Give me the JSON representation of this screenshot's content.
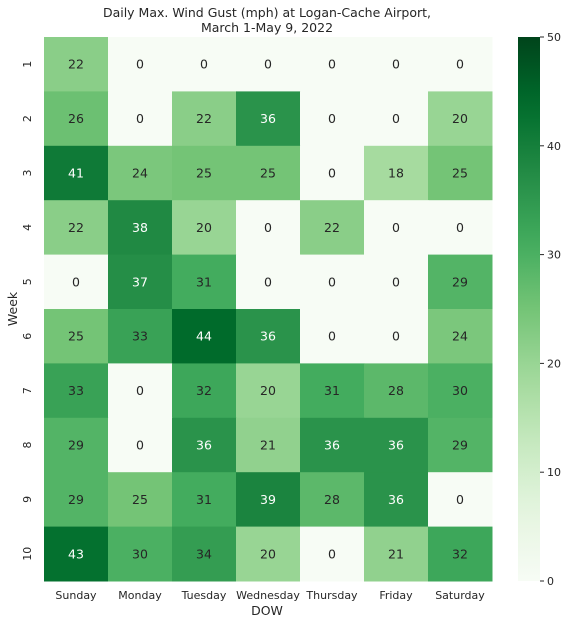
{
  "chart_data": {
    "type": "heatmap",
    "title_lines": [
      "Daily Max. Wind Gust (mph) at Logan-Cache Airport,",
      "March 1-May 9, 2022"
    ],
    "xlabel": "DOW",
    "ylabel": "Week",
    "x_categories": [
      "Sunday",
      "Monday",
      "Tuesday",
      "Wednesday",
      "Thursday",
      "Friday",
      "Saturday"
    ],
    "y_categories": [
      "1",
      "2",
      "3",
      "4",
      "5",
      "6",
      "7",
      "8",
      "9",
      "10"
    ],
    "values": [
      [
        22,
        0,
        0,
        0,
        0,
        0,
        0
      ],
      [
        26,
        0,
        22,
        36,
        0,
        0,
        20
      ],
      [
        41,
        24,
        25,
        25,
        0,
        18,
        25
      ],
      [
        22,
        38,
        20,
        0,
        22,
        0,
        0
      ],
      [
        0,
        37,
        31,
        0,
        0,
        0,
        29
      ],
      [
        25,
        33,
        44,
        36,
        0,
        0,
        24
      ],
      [
        33,
        0,
        32,
        20,
        31,
        28,
        30
      ],
      [
        29,
        0,
        36,
        21,
        36,
        36,
        29
      ],
      [
        29,
        25,
        31,
        39,
        28,
        36,
        0
      ],
      [
        43,
        30,
        34,
        20,
        0,
        21,
        32
      ]
    ],
    "colorbar": {
      "min": 0,
      "max": 50,
      "ticks": [
        0,
        10,
        20,
        30,
        40,
        50
      ],
      "colormap": "Greens",
      "color_low": "#f7fcf5",
      "color_high": "#00441b"
    },
    "grid": false,
    "legend": "colorbar-right"
  }
}
